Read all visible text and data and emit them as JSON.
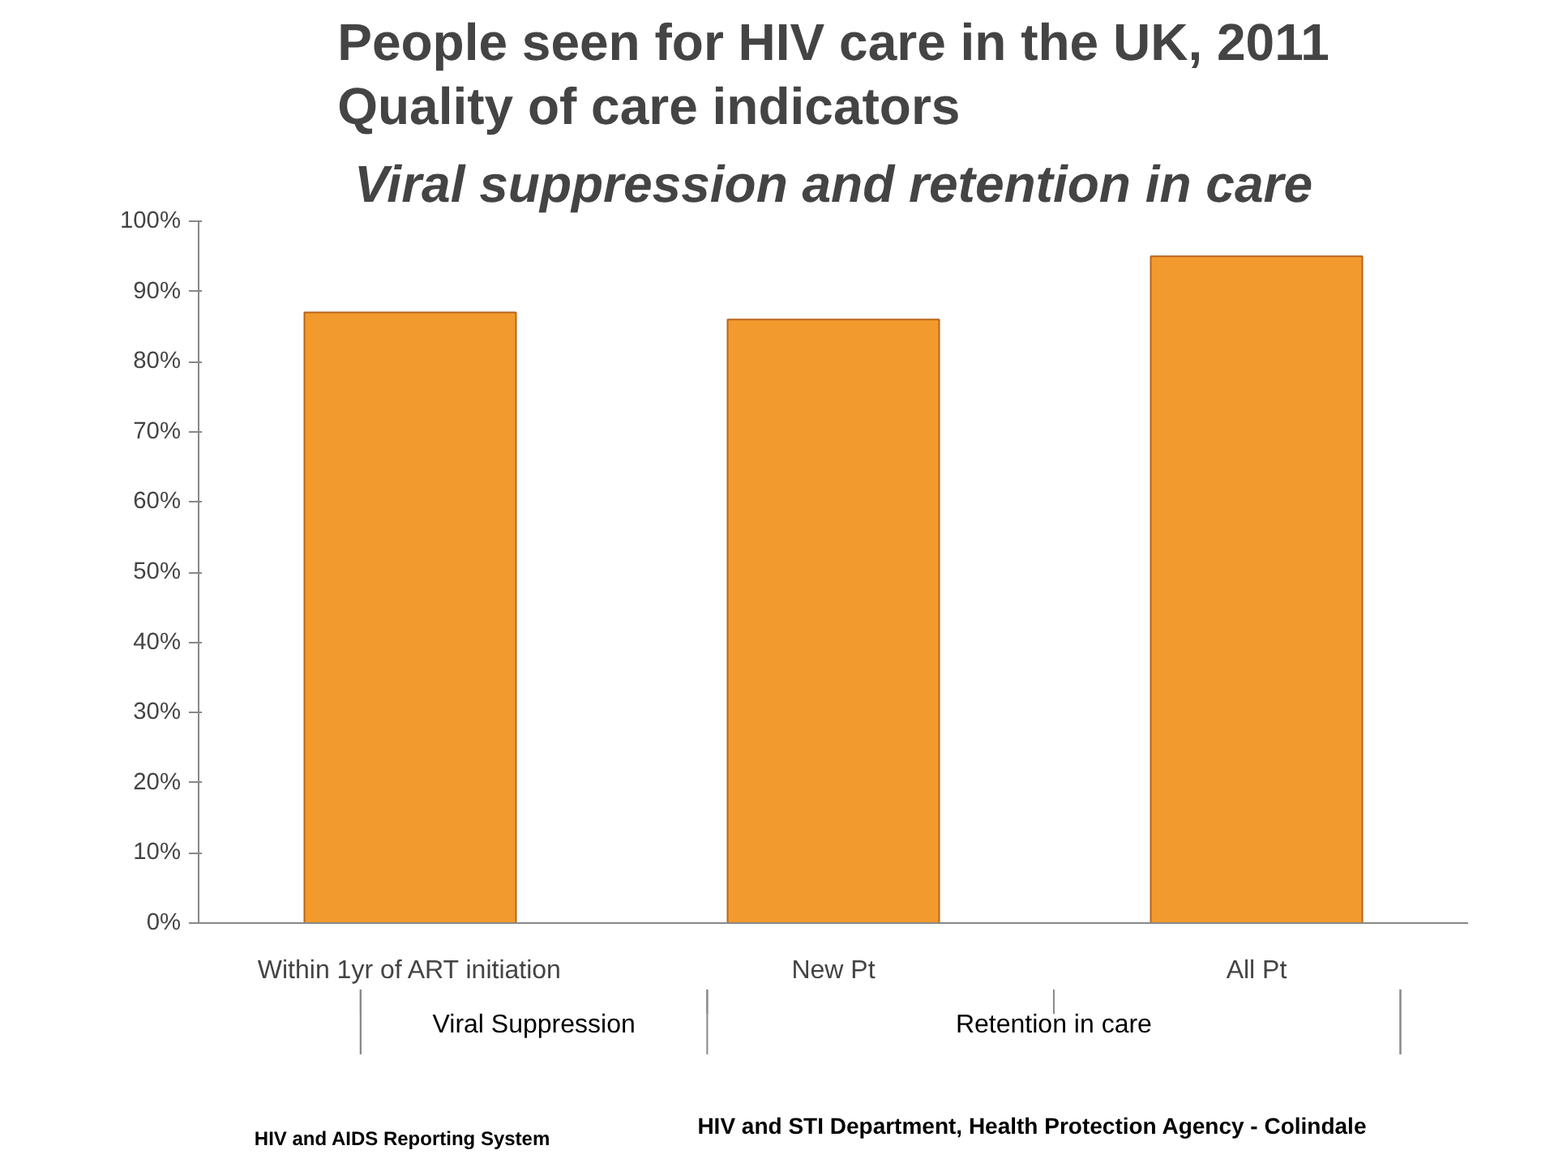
{
  "chart_data": {
    "type": "bar",
    "title": "People seen for HIV care in the UK, 2011\nQuality of care indicators",
    "subtitle": "Viral suppression and retention in care",
    "categories": [
      "Within 1yr of ART initiation",
      "New Pt",
      "All Pt"
    ],
    "values": [
      87,
      86,
      95
    ],
    "color": "#f39a2e",
    "ylim": [
      0,
      100
    ],
    "yticks": [
      {
        "value": 0,
        "label": "0%"
      },
      {
        "value": 10,
        "label": "10%"
      },
      {
        "value": 20,
        "label": "20%"
      },
      {
        "value": 30,
        "label": "30%"
      },
      {
        "value": 40,
        "label": "40%"
      },
      {
        "value": 50,
        "label": "50%"
      },
      {
        "value": 60,
        "label": "60%"
      },
      {
        "value": 70,
        "label": "70%"
      },
      {
        "value": 80,
        "label": "80%"
      },
      {
        "value": 90,
        "label": "90%"
      },
      {
        "value": 100,
        "label": "100%"
      }
    ],
    "grid": false,
    "annotations": [
      "Viral Suppression",
      "Retention in care",
      "HIV and AIDS Reporting System",
      "HIV and STI Department, Health Protection Agency - Colindale"
    ]
  }
}
